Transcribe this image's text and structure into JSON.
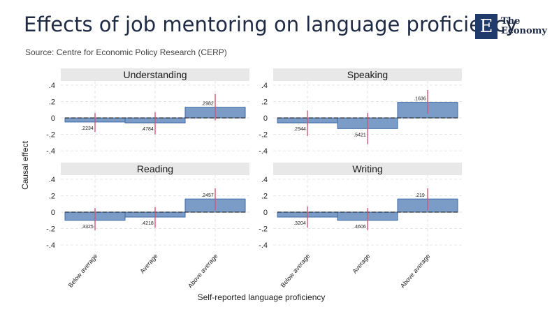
{
  "header": {
    "title": "Effects of job mentoring on language proficiency",
    "subtitle": "Source: Centre for Economic Policy Research (CERP)",
    "logo_mark": "E",
    "logo_line1": "The",
    "logo_line2": "Economy"
  },
  "colors": {
    "bar_fill": "#7c9cc8",
    "bar_stroke": "#3d6aa6",
    "ci": "#d2557a",
    "title": "#1f2a44",
    "logo": "#1f3a6b"
  },
  "chart_data": {
    "type": "bar",
    "xlabel": "Self-reported language proficiency",
    "ylabel": "Causal effect",
    "categories": [
      "Below average",
      "Average",
      "Above average"
    ],
    "ylim": [
      -0.45,
      0.45
    ],
    "yticks": [
      0.4,
      0.2,
      0,
      -0.2,
      -0.4
    ],
    "ytick_labels": [
      ".4",
      ".2",
      "0",
      "-.2",
      "-.4"
    ],
    "grid": true,
    "panels": [
      {
        "name": "Understanding",
        "values": [
          -0.05,
          -0.06,
          0.13
        ],
        "ci_low": [
          -0.17,
          -0.2,
          -0.03
        ],
        "ci_high": [
          0.06,
          0.07,
          0.29
        ],
        "labels": [
          ".2234",
          ".4784",
          ".2982"
        ]
      },
      {
        "name": "Speaking",
        "values": [
          -0.06,
          -0.13,
          0.19
        ],
        "ci_low": [
          -0.22,
          -0.32,
          0.05
        ],
        "ci_high": [
          0.09,
          0.06,
          0.34
        ],
        "labels": [
          ".2944",
          ".5421",
          ".1636"
        ]
      },
      {
        "name": "Reading",
        "values": [
          -0.1,
          -0.06,
          0.16
        ],
        "ci_low": [
          -0.22,
          -0.19,
          0.02
        ],
        "ci_high": [
          0.05,
          0.06,
          0.29
        ],
        "labels": [
          ".3325",
          ".4218",
          ".2457"
        ]
      },
      {
        "name": "Writing",
        "values": [
          -0.06,
          -0.1,
          0.16
        ],
        "ci_low": [
          -0.19,
          -0.22,
          0.02
        ],
        "ci_high": [
          0.07,
          0.05,
          0.29
        ],
        "labels": [
          ".3204",
          ".4606",
          ".219"
        ]
      }
    ]
  }
}
